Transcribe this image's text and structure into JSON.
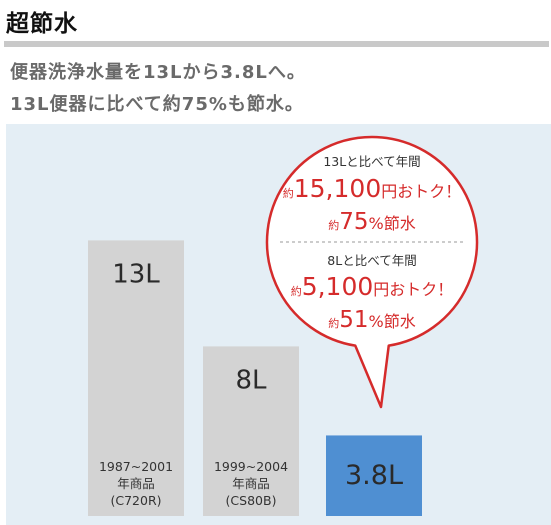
{
  "heading": {
    "title": "超節水",
    "line1": "便器洗浄水量を13Lから3.8Lへ。",
    "line2": "13L便器に比べて約75%も節水。"
  },
  "chart_data": {
    "type": "bar",
    "categories": [
      "1987~2001 年商品 (C720R)",
      "1999~2004 年商品 (CS80B)",
      ""
    ],
    "values": [
      13,
      8,
      3.8
    ],
    "value_labels": [
      "13L",
      "8L",
      "3.8L"
    ],
    "unit": "L",
    "bar_notes": [
      [
        "1987~2001",
        "年商品",
        "(C720R)"
      ],
      [
        "1999~2004",
        "年商品",
        "(CS80B)"
      ],
      []
    ],
    "colors": {
      "old": "#d3d3d3",
      "new": "#4f8fd2",
      "accent": "#d52b2b",
      "background": "#e4eef5"
    },
    "callout": {
      "compare1": "13Lと比べて年間",
      "prefix1": "約",
      "saving1": "15,100",
      "unit1": "円おトク！",
      "pct_prefix1": "約",
      "pct1": "75",
      "pct_unit1": "%節水",
      "compare2": "8Lと比べて年間",
      "prefix2": "約",
      "saving2": "5,100",
      "unit2": "円おトク！",
      "pct_prefix2": "約",
      "pct2": "51",
      "pct_unit2": "%節水"
    }
  }
}
